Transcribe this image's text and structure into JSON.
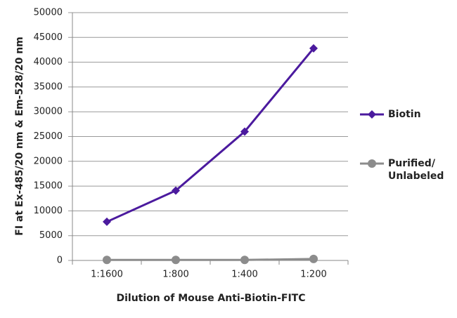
{
  "chart_data": {
    "type": "line",
    "x_label": "Dilution of Mouse Anti-Biotin-FITC",
    "y_label": "FI at Ex-485/20 nm & Em-528/20 nm",
    "categories": [
      "1:1600",
      "1:800",
      "1:400",
      "1:200"
    ],
    "series": [
      {
        "name": "Biotin",
        "color": "#4b1a9e",
        "marker": "diamond",
        "values": [
          7800,
          14100,
          26000,
          42800
        ]
      },
      {
        "name": "Purified/ Unlabeled",
        "color": "#8c8c8c",
        "marker": "circle",
        "values": [
          100,
          100,
          100,
          300
        ]
      }
    ],
    "ylim": [
      0,
      50000
    ],
    "yticks": [
      0,
      5000,
      10000,
      15000,
      20000,
      25000,
      30000,
      35000,
      40000,
      45000,
      50000
    ],
    "grid": true,
    "legend": "right"
  }
}
